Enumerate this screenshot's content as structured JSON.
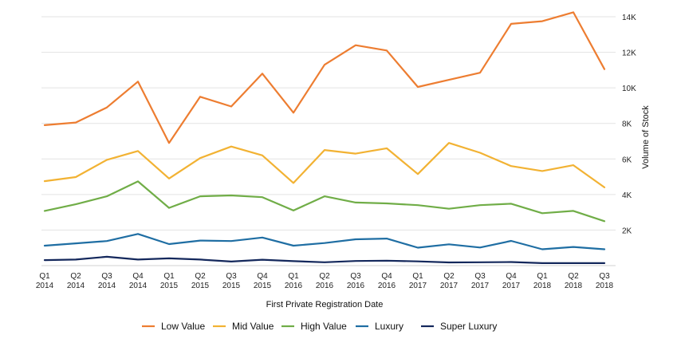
{
  "chart_data": {
    "type": "line",
    "categories": [
      [
        "Q1",
        "2014"
      ],
      [
        "Q2",
        "2014"
      ],
      [
        "Q3",
        "2014"
      ],
      [
        "Q4",
        "2014"
      ],
      [
        "Q1",
        "2015"
      ],
      [
        "Q2",
        "2015"
      ],
      [
        "Q3",
        "2015"
      ],
      [
        "Q4",
        "2015"
      ],
      [
        "Q1",
        "2016"
      ],
      [
        "Q2",
        "2016"
      ],
      [
        "Q3",
        "2016"
      ],
      [
        "Q4",
        "2016"
      ],
      [
        "Q1",
        "2017"
      ],
      [
        "Q2",
        "2017"
      ],
      [
        "Q3",
        "2017"
      ],
      [
        "Q4",
        "2017"
      ],
      [
        "Q1",
        "2018"
      ],
      [
        "Q2",
        "2018"
      ],
      [
        "Q3",
        "2018"
      ]
    ],
    "xlabel": "First Private Registration Date",
    "ylabel": "Volume of Stock",
    "ylim": [
      0,
      14000
    ],
    "y_ticks": [
      2000,
      4000,
      6000,
      8000,
      10000,
      12000,
      14000
    ],
    "y_tick_labels": [
      "2K",
      "4K",
      "6K",
      "8K",
      "10K",
      "12K",
      "14K"
    ],
    "y_axis_position": "right",
    "grid": true,
    "legend_position": "bottom",
    "series": [
      {
        "name": "Low Value",
        "color": "#ED7D31",
        "values": [
          7900,
          8050,
          8900,
          10350,
          6900,
          9500,
          8950,
          10800,
          8600,
          11300,
          12400,
          12100,
          10050,
          10450,
          10850,
          13600,
          13750,
          14250,
          11050
        ]
      },
      {
        "name": "Mid Value",
        "color": "#F2B233",
        "values": [
          4750,
          4980,
          5950,
          6450,
          4900,
          6050,
          6700,
          6200,
          4650,
          6500,
          6300,
          6600,
          5150,
          6900,
          6350,
          5600,
          5320,
          5650,
          4400
        ]
      },
      {
        "name": "High Value",
        "color": "#70AD47",
        "values": [
          3080,
          3450,
          3900,
          4740,
          3250,
          3900,
          3950,
          3850,
          3100,
          3900,
          3550,
          3500,
          3400,
          3200,
          3400,
          3480,
          2950,
          3080,
          2500
        ]
      },
      {
        "name": "Luxury",
        "color": "#1F6EA3",
        "values": [
          1120,
          1250,
          1380,
          1780,
          1210,
          1410,
          1380,
          1580,
          1120,
          1270,
          1480,
          1520,
          1010,
          1200,
          1020,
          1390,
          920,
          1050,
          920
        ]
      },
      {
        "name": "Super Luxury",
        "color": "#14285C",
        "values": [
          310,
          340,
          500,
          340,
          410,
          340,
          230,
          330,
          250,
          190,
          260,
          280,
          240,
          180,
          190,
          200,
          140,
          140,
          140
        ]
      }
    ]
  }
}
